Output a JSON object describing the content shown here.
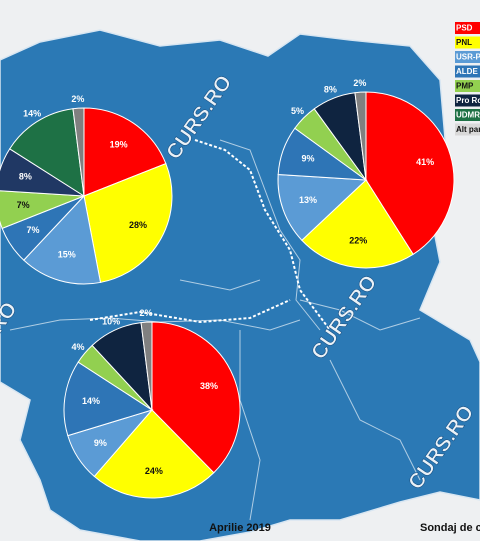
{
  "chart_data": [
    {
      "type": "pie",
      "values": [
        19,
        28,
        15,
        7,
        7,
        8,
        14,
        2
      ],
      "value_labels": [
        "19%",
        "28%",
        "15%",
        "7%",
        "7%",
        "8%",
        "14%",
        "2%"
      ],
      "colors": [
        "#ff0000",
        "#ffff00",
        "#5b9bd5",
        "#2e75b6",
        "#92d050",
        "#203864",
        "#1e7145",
        "#808080"
      ]
    },
    {
      "type": "pie",
      "values": [
        41,
        22,
        13,
        9,
        5,
        8,
        2
      ],
      "value_labels": [
        "41%",
        "22%",
        "13%",
        "9%",
        "5%",
        "8%",
        "2%"
      ],
      "colors": [
        "#ff0000",
        "#ffff00",
        "#5b9bd5",
        "#2e75b6",
        "#92d050",
        "#0f2440",
        "#808080"
      ]
    },
    {
      "type": "pie",
      "values": [
        38,
        24,
        9,
        14,
        4,
        10,
        2
      ],
      "value_labels": [
        "38%",
        "24%",
        "9%",
        "14%",
        "4%",
        "10%",
        "2%"
      ],
      "colors": [
        "#ff0000",
        "#ffff00",
        "#5b9bd5",
        "#2e75b6",
        "#92d050",
        "#0f2440",
        "#808080"
      ]
    }
  ],
  "legend": [
    {
      "label": "PSD",
      "color": "#ff0000"
    },
    {
      "label": "PNL",
      "color": "#ffff00"
    },
    {
      "label": "USR-P",
      "color": "#5b9bd5"
    },
    {
      "label": "ALDE",
      "color": "#2e75b6"
    },
    {
      "label": "PMP",
      "color": "#92d050"
    },
    {
      "label": "Pro Ro",
      "color": "#0f2440"
    },
    {
      "label": "UDMR",
      "color": "#1e7145"
    },
    {
      "label": "Alt par",
      "color": "#d9d9d9"
    }
  ],
  "watermarks": [
    "CURS.RO",
    "CURS.RO",
    "CURS.RO",
    "RO"
  ],
  "footer": {
    "date": "Aprilie 2019",
    "source": "Sondaj de c"
  }
}
